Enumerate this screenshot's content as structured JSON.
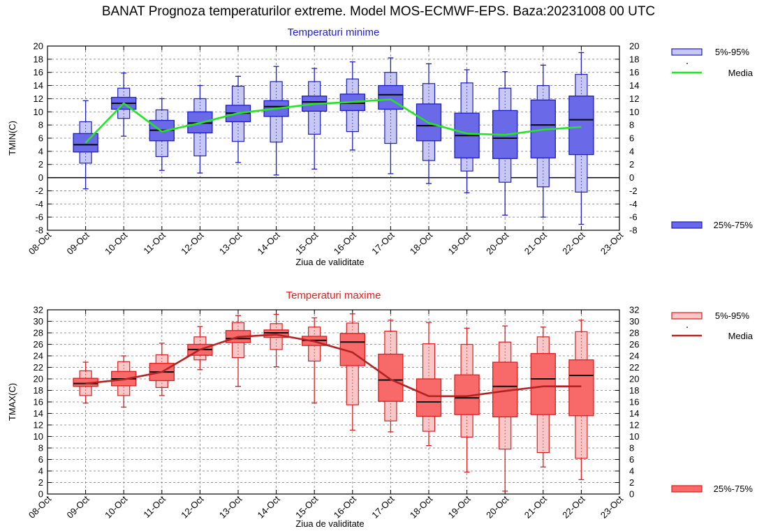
{
  "title": "BANAT  Prognoza temperaturilor extreme.  Model MOS-ECMWF-EPS. Baza:20231008 00 UTC",
  "x_tick_labels": [
    "08-Oct",
    "09-Oct",
    "10-Oct",
    "11-Oct",
    "12-Oct",
    "13-Oct",
    "14-Oct",
    "15-Oct",
    "16-Oct",
    "17-Oct",
    "18-Oct",
    "19-Oct",
    "20-Oct",
    "21-Oct",
    "22-Oct",
    "23-Oct"
  ],
  "chart_data": [
    {
      "type": "box",
      "subtitle": "Temperaturi minime",
      "xlabel": "Ziua de validitate",
      "ylabel": "TMIN(C)",
      "ylim": [
        -8,
        20
      ],
      "ytick_step": 2,
      "grid": true,
      "zero_line": true,
      "colors": {
        "box_light": "#c8c8f4",
        "box_dark": "#6a6ae8",
        "stroke": "#1c1cc8",
        "mean": "#22e622",
        "subtitle": "#1c1cd8"
      },
      "legend": {
        "range_5_95": "5%-95%",
        "mean": "Media",
        "range_25_75": "25%-75%"
      },
      "categories": [
        "09-Oct",
        "10-Oct",
        "11-Oct",
        "12-Oct",
        "13-Oct",
        "14-Oct",
        "15-Oct",
        "16-Oct",
        "17-Oct",
        "18-Oct",
        "19-Oct",
        "20-Oct",
        "21-Oct",
        "22-Oct"
      ],
      "whisker_low": [
        -1.7,
        6.3,
        1.1,
        0.7,
        2.3,
        0.4,
        1.3,
        4.2,
        0.6,
        -0.9,
        -2.3,
        -5.7,
        -6.0,
        -7.1
      ],
      "p5": [
        2.2,
        9.0,
        3.2,
        3.3,
        5.5,
        5.4,
        6.6,
        7.0,
        5.2,
        2.6,
        1.0,
        -0.7,
        -1.4,
        -2.2
      ],
      "p25": [
        3.9,
        10.4,
        5.6,
        6.8,
        8.5,
        9.3,
        10.1,
        10.2,
        10.4,
        5.6,
        3.0,
        2.9,
        3.0,
        3.5
      ],
      "median": [
        5.0,
        11.3,
        7.2,
        8.3,
        9.8,
        10.8,
        11.5,
        11.3,
        12.6,
        7.9,
        6.4,
        6.0,
        8.0,
        8.8
      ],
      "p75": [
        6.7,
        12.2,
        8.7,
        10.0,
        11.0,
        11.7,
        12.4,
        12.7,
        14.0,
        11.2,
        9.8,
        10.2,
        11.8,
        12.4
      ],
      "p95": [
        8.5,
        13.6,
        10.3,
        12.0,
        13.9,
        14.6,
        14.6,
        15.0,
        16.0,
        14.3,
        14.4,
        13.6,
        14.0,
        15.7
      ],
      "whisker_high": [
        11.7,
        15.9,
        12.0,
        14.0,
        15.4,
        16.9,
        16.6,
        17.6,
        18.2,
        17.3,
        16.4,
        16.1,
        17.1,
        19.0
      ],
      "mean": [
        5.3,
        11.3,
        7.0,
        8.3,
        9.8,
        10.5,
        11.2,
        11.5,
        11.9,
        8.3,
        6.7,
        6.5,
        7.3,
        7.7
      ]
    },
    {
      "type": "box",
      "subtitle": "Temperaturi maxime",
      "xlabel": "Ziua de validitate",
      "ylabel": "TMAX(C)",
      "ylim": [
        0,
        32
      ],
      "ytick_step": 2,
      "grid": true,
      "zero_line": false,
      "colors": {
        "box_light": "#f8c8c8",
        "box_dark": "#f86a6a",
        "stroke": "#e01c1c",
        "mean": "#b42222",
        "subtitle": "#e81c1c"
      },
      "legend": {
        "range_5_95": "5%-95%",
        "mean": "Media",
        "range_25_75": "25%-75%"
      },
      "categories": [
        "09-Oct",
        "10-Oct",
        "11-Oct",
        "12-Oct",
        "13-Oct",
        "14-Oct",
        "15-Oct",
        "16-Oct",
        "17-Oct",
        "18-Oct",
        "19-Oct",
        "20-Oct",
        "21-Oct",
        "22-Oct"
      ],
      "whisker_low": [
        15.8,
        15.1,
        17.1,
        21.6,
        18.7,
        22.1,
        15.8,
        11.1,
        10.8,
        8.4,
        3.8,
        0.5,
        4.7,
        2.5
      ],
      "p5": [
        17.1,
        17.1,
        18.5,
        23.3,
        23.7,
        25.1,
        23.1,
        15.5,
        12.7,
        10.9,
        9.9,
        7.8,
        7.2,
        6.2
      ],
      "p25": [
        18.7,
        18.8,
        19.7,
        24.1,
        26.3,
        27.2,
        25.8,
        22.3,
        16.1,
        13.5,
        13.8,
        13.4,
        13.8,
        13.6
      ],
      "median": [
        19.2,
        20.0,
        21.2,
        25.1,
        27.0,
        28.0,
        26.7,
        26.4,
        19.8,
        16.0,
        16.7,
        18.7,
        20.0,
        20.6
      ],
      "p75": [
        20.1,
        21.3,
        22.7,
        26.0,
        28.4,
        28.5,
        27.4,
        27.9,
        24.3,
        20.0,
        20.7,
        22.9,
        24.4,
        23.3
      ],
      "p95": [
        21.4,
        23.0,
        24.2,
        27.3,
        29.8,
        29.6,
        29.0,
        29.7,
        28.3,
        26.1,
        26.0,
        26.4,
        27.3,
        28.2
      ],
      "whisker_high": [
        22.9,
        24.0,
        26.2,
        29.1,
        31.0,
        31.2,
        30.6,
        31.3,
        30.2,
        29.8,
        28.8,
        29.2,
        29.0,
        30.2
      ],
      "mean": [
        19.2,
        19.9,
        21.2,
        25.1,
        27.3,
        27.7,
        26.5,
        24.6,
        19.9,
        17.0,
        17.0,
        17.9,
        18.7,
        18.7
      ]
    }
  ]
}
